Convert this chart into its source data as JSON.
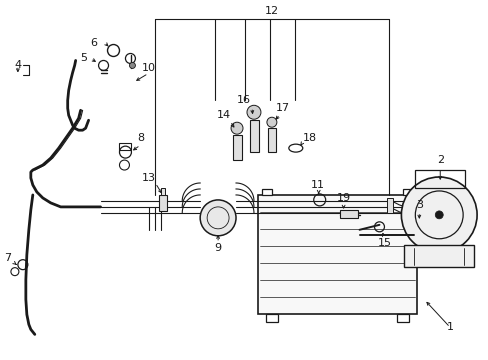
{
  "background_color": "#ffffff",
  "line_color": "#1a1a1a",
  "fig_width": 4.89,
  "fig_height": 3.6,
  "dpi": 100,
  "label_fs": 7.5,
  "lw_pipe": 1.4,
  "lw_thin": 0.8,
  "lw_thick": 2.0
}
